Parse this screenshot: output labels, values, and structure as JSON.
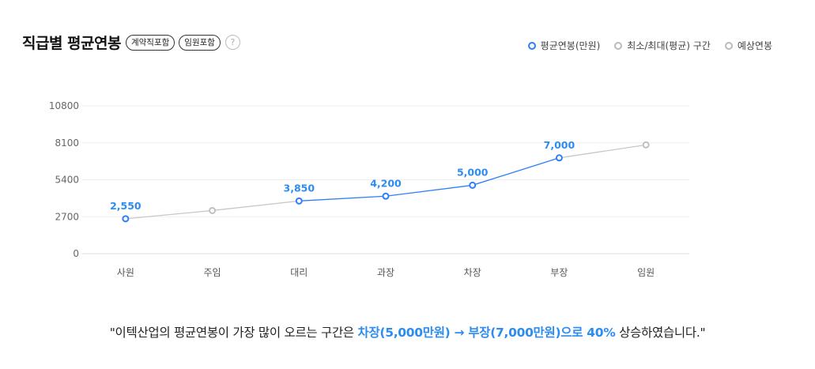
{
  "header": {
    "title": "직급별 평균연봉",
    "tags": [
      "계약직포함",
      "임원포함"
    ],
    "help_icon": "question-icon",
    "help_text": "?"
  },
  "legend": [
    {
      "label": "평균연봉(만원)",
      "color": "#2d7ff9"
    },
    {
      "label": "최소/최대(평균) 구간",
      "color": "#bbbbbb"
    },
    {
      "label": "예상연봉",
      "color": "#bbbbbb"
    }
  ],
  "chart_data": {
    "type": "line",
    "categories": [
      "사원",
      "주임",
      "대리",
      "과장",
      "차장",
      "부장",
      "임원"
    ],
    "yticks": [
      0,
      2700,
      5400,
      8100,
      10800
    ],
    "ylim": [
      0,
      10800
    ],
    "grid": true,
    "series": [
      {
        "name": "평균연봉(만원)",
        "color": "#2d7ff9",
        "values": [
          2550,
          null,
          3850,
          4200,
          5000,
          7000,
          null
        ],
        "labels": [
          "2,550",
          "",
          "3,850",
          "4,200",
          "5,000",
          "7,000",
          ""
        ]
      },
      {
        "name": "예상연봉",
        "color": "#c8c8c8",
        "values": [
          2550,
          3150,
          3850,
          null,
          null,
          7000,
          7950
        ]
      }
    ]
  },
  "summary": {
    "prefix": "\"이텍산업의 평균연봉이 가장 많이 오르는 구간은 ",
    "highlight": "차장(5,000만원) → 부장(7,000만원)으로 40%",
    "suffix": " 상승하였습니다.\""
  }
}
